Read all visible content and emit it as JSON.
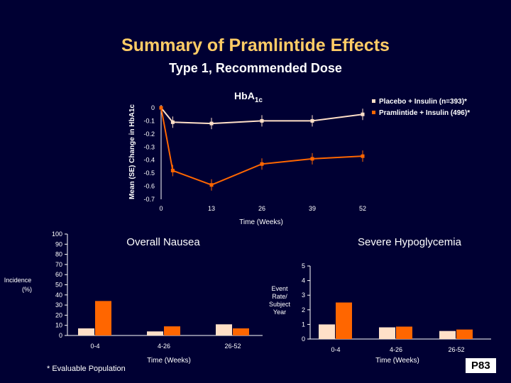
{
  "slide": {
    "title": "Summary of Pramlintide Effects",
    "subtitle": "Type 1, Recommended Dose",
    "footnote": "* Evaluable Population",
    "code": "P83"
  },
  "colors": {
    "background": "#000033",
    "title": "#ffcc66",
    "placebo": "#ffe0c8",
    "pramlintide": "#ff6600"
  },
  "chart_data": [
    {
      "type": "line",
      "title": "HbA",
      "title_sub": "1c",
      "ylabel": "Mean (SE) Change in HbA1c",
      "xlabel": "Time (Weeks)",
      "x": [
        0,
        13,
        26,
        39,
        52
      ],
      "x_ticks": [
        "0",
        "13",
        "26",
        "39",
        "52"
      ],
      "y_ticks": [
        "0",
        "-0.1",
        "-0.2",
        "-0.3",
        "-0.4",
        "-0.5",
        "-0.6",
        "-0.7"
      ],
      "ylim": [
        -0.7,
        0
      ],
      "legend_position": "top-right",
      "series": [
        {
          "name": "Placebo + Insulin (n=393)*",
          "points": [
            [
              0,
              0
            ],
            [
              3,
              -0.11
            ],
            [
              13,
              -0.12
            ],
            [
              26,
              -0.1
            ],
            [
              39,
              -0.1
            ],
            [
              52,
              -0.05
            ]
          ]
        },
        {
          "name": "Pramlintide + Insulin (496)*",
          "points": [
            [
              0,
              0
            ],
            [
              3,
              -0.48
            ],
            [
              13,
              -0.59
            ],
            [
              26,
              -0.43
            ],
            [
              39,
              -0.39
            ],
            [
              52,
              -0.37
            ]
          ]
        }
      ]
    },
    {
      "type": "bar",
      "title": "Overall Nausea",
      "ylabel_lines": [
        "Incidence",
        "(%)"
      ],
      "xlabel": "Time (Weeks)",
      "categories": [
        "0-4",
        "4-26",
        "26-52"
      ],
      "y_ticks": [
        "0",
        "10",
        "20",
        "30",
        "40",
        "50",
        "60",
        "70",
        "80",
        "90",
        "100"
      ],
      "ylim": [
        0,
        100
      ],
      "series": [
        {
          "name": "Placebo + Insulin",
          "values": [
            7,
            4,
            11
          ]
        },
        {
          "name": "Pramlintide + Insulin",
          "values": [
            34,
            9,
            7
          ]
        }
      ]
    },
    {
      "type": "bar",
      "title": "Severe Hypoglycemia",
      "ylabel_lines": [
        "Event",
        "Rate/",
        "Subject",
        "Year"
      ],
      "xlabel": "Time (Weeks)",
      "categories": [
        "0-4",
        "4-26",
        "26-52"
      ],
      "y_ticks": [
        "0",
        "1",
        "2",
        "3",
        "4",
        "5"
      ],
      "ylim": [
        0,
        5
      ],
      "series": [
        {
          "name": "Placebo + Insulin",
          "values": [
            1.0,
            0.8,
            0.55
          ]
        },
        {
          "name": "Pramlintide + Insulin",
          "values": [
            2.5,
            0.85,
            0.65
          ]
        }
      ]
    }
  ]
}
